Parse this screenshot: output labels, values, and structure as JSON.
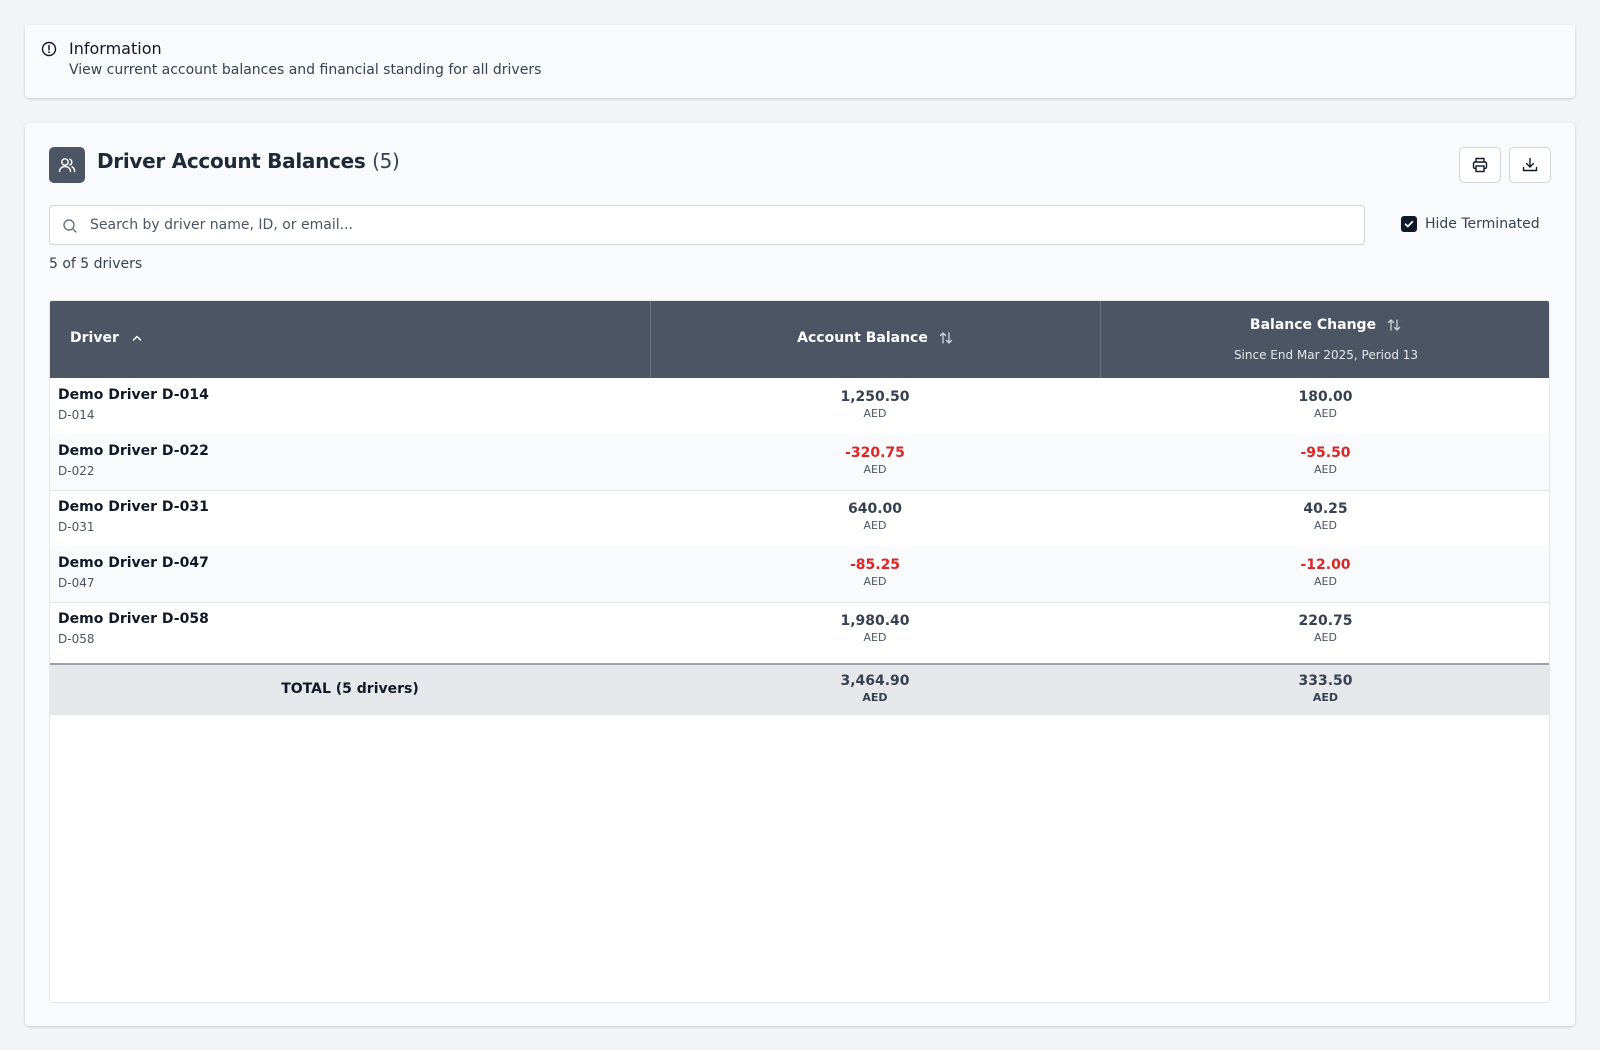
{
  "info": {
    "title": "Information",
    "description": "View current account balances and financial standing for all drivers"
  },
  "header": {
    "title": "Driver Account Balances",
    "count": "(5)"
  },
  "search": {
    "placeholder": "Search by driver name, ID, or email...",
    "value": ""
  },
  "filter": {
    "hide_terminated_label": "Hide Terminated",
    "hide_terminated_checked": true
  },
  "results_count": "5 of 5 drivers",
  "table": {
    "columns": {
      "driver": "Driver",
      "account_balance": "Account Balance",
      "balance_change": "Balance Change",
      "balance_change_sub": "Since End Mar 2025, Period 13"
    },
    "rows": [
      {
        "name": "Demo Driver D-014",
        "id": "D-014",
        "balance": "1,250.50",
        "balance_currency": "AED",
        "change": "180.00",
        "change_currency": "AED"
      },
      {
        "name": "Demo Driver D-022",
        "id": "D-022",
        "balance": "-320.75",
        "balance_currency": "AED",
        "change": "-95.50",
        "change_currency": "AED"
      },
      {
        "name": "Demo Driver D-031",
        "id": "D-031",
        "balance": "640.00",
        "balance_currency": "AED",
        "change": "40.25",
        "change_currency": "AED"
      },
      {
        "name": "Demo Driver D-047",
        "id": "D-047",
        "balance": "-85.25",
        "balance_currency": "AED",
        "change": "-12.00",
        "change_currency": "AED"
      },
      {
        "name": "Demo Driver D-058",
        "id": "D-058",
        "balance": "1,980.40",
        "balance_currency": "AED",
        "change": "220.75",
        "change_currency": "AED"
      }
    ],
    "total": {
      "label": "TOTAL (5 drivers)",
      "balance": "3,464.90",
      "balance_currency": "AED",
      "change": "333.50",
      "change_currency": "AED"
    }
  },
  "colors": {
    "header_bg": "#4b5563",
    "negative": "#dc2626",
    "total_bg": "#e5e7eb"
  },
  "icons": {
    "info": "info-circle-icon",
    "title": "users-icon",
    "print": "printer-icon",
    "download": "download-icon",
    "search": "search-icon",
    "sort_asc": "chevron-up-icon",
    "sort": "sort-arrows-icon"
  }
}
